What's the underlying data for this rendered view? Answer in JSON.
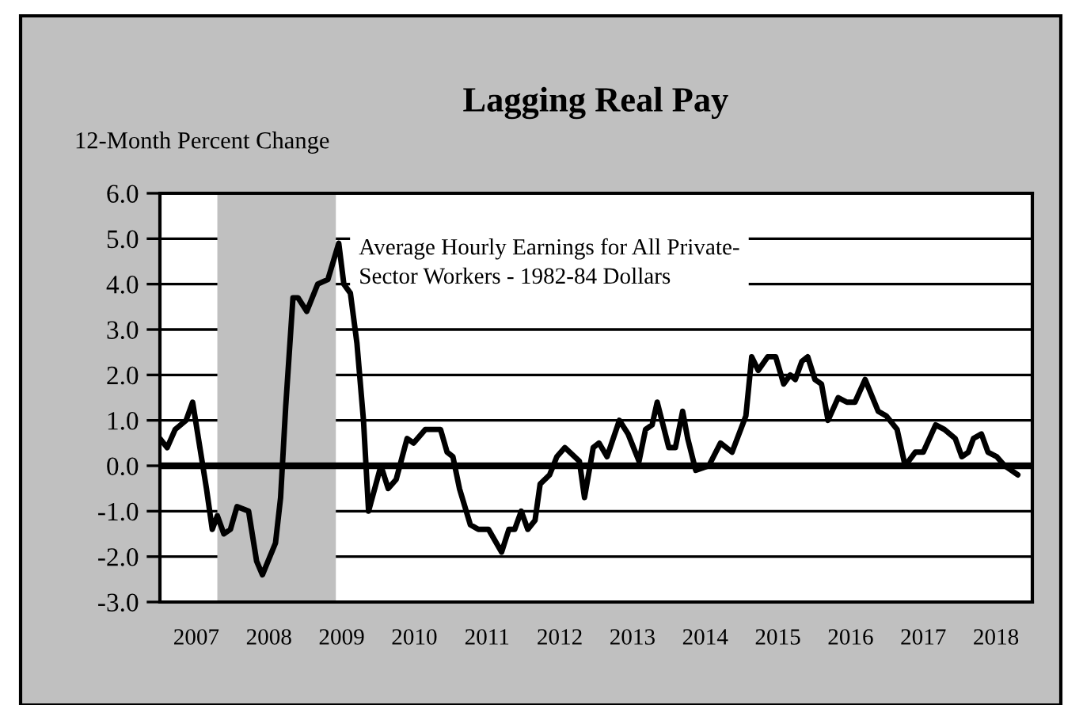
{
  "chart_data": {
    "type": "line",
    "title": "Lagging Real Pay",
    "ylabel": "12-Month Percent Change",
    "x": [
      2007.0,
      2007.1,
      2007.21,
      2007.36,
      2007.45,
      2007.54,
      2007.64,
      2007.72,
      2007.79,
      2007.88,
      2007.97,
      2008.06,
      2008.22,
      2008.33,
      2008.41,
      2008.59,
      2008.66,
      2008.73,
      2008.83,
      2008.9,
      2009.02,
      2009.17,
      2009.31,
      2009.46,
      2009.53,
      2009.62,
      2009.71,
      2009.8,
      2009.87,
      2010.04,
      2010.14,
      2010.25,
      2010.4,
      2010.49,
      2010.65,
      2010.86,
      2010.95,
      2011.03,
      2011.12,
      2011.27,
      2011.38,
      2011.52,
      2011.7,
      2011.8,
      2011.88,
      2011.97,
      2012.06,
      2012.16,
      2012.23,
      2012.36,
      2012.46,
      2012.57,
      2012.77,
      2012.84,
      2012.96,
      2013.04,
      2013.15,
      2013.32,
      2013.44,
      2013.59,
      2013.68,
      2013.77,
      2013.84,
      2014.0,
      2014.09,
      2014.19,
      2014.26,
      2014.37,
      2014.55,
      2014.71,
      2014.87,
      2015.06,
      2015.14,
      2015.23,
      2015.36,
      2015.47,
      2015.58,
      2015.67,
      2015.74,
      2015.83,
      2015.91,
      2016.01,
      2016.1,
      2016.19,
      2016.33,
      2016.45,
      2016.56,
      2016.7,
      2016.88,
      2016.99,
      2017.14,
      2017.25,
      2017.39,
      2017.5,
      2017.67,
      2017.79,
      2017.94,
      2018.03,
      2018.12,
      2018.19,
      2018.3,
      2018.39,
      2018.51,
      2018.62,
      2018.8
    ],
    "series": [
      {
        "name": "Average Hourly Earnings for All Private-\nSector Workers - 1982-84 Dollars",
        "color": "#000000",
        "values": [
          0.6,
          0.4,
          0.8,
          1.0,
          1.4,
          0.5,
          -0.5,
          -1.4,
          -1.1,
          -1.5,
          -1.4,
          -0.9,
          -1.0,
          -2.1,
          -2.4,
          -1.7,
          -0.7,
          1.3,
          3.7,
          3.7,
          3.4,
          4.0,
          4.1,
          4.9,
          4.0,
          3.8,
          2.7,
          1.0,
          -1.0,
          0.0,
          -0.5,
          -0.3,
          0.6,
          0.5,
          0.8,
          0.8,
          0.3,
          0.2,
          -0.5,
          -1.3,
          -1.4,
          -1.4,
          -1.9,
          -1.4,
          -1.4,
          -1.0,
          -1.4,
          -1.2,
          -0.4,
          -0.2,
          0.2,
          0.4,
          0.1,
          -0.7,
          0.4,
          0.5,
          0.2,
          1.0,
          0.7,
          0.1,
          0.8,
          0.9,
          1.4,
          0.4,
          0.4,
          1.2,
          0.6,
          -0.1,
          0.0,
          0.5,
          0.3,
          1.1,
          2.4,
          2.1,
          2.4,
          2.4,
          1.8,
          2.0,
          1.9,
          2.3,
          2.4,
          1.9,
          1.8,
          1.0,
          1.5,
          1.4,
          1.4,
          1.9,
          1.2,
          1.1,
          0.8,
          0.0,
          0.3,
          0.3,
          0.9,
          0.8,
          0.6,
          0.2,
          0.3,
          0.6,
          0.7,
          0.3,
          0.2,
          0.0,
          -0.2
        ]
      }
    ],
    "xlim": [
      2007,
      2019
    ],
    "xticks": [
      {
        "value": 2007.5,
        "label": "2007"
      },
      {
        "value": 2008.5,
        "label": "2008"
      },
      {
        "value": 2009.5,
        "label": "2009"
      },
      {
        "value": 2010.5,
        "label": "2010"
      },
      {
        "value": 2011.5,
        "label": "2011"
      },
      {
        "value": 2012.5,
        "label": "2012"
      },
      {
        "value": 2013.5,
        "label": "2013"
      },
      {
        "value": 2014.5,
        "label": "2014"
      },
      {
        "value": 2015.5,
        "label": "2015"
      },
      {
        "value": 2016.5,
        "label": "2016"
      },
      {
        "value": 2017.5,
        "label": "2017"
      },
      {
        "value": 2018.5,
        "label": "2018"
      }
    ],
    "ylim": [
      -3,
      6
    ],
    "yticks": [
      {
        "value": -3,
        "label": "-3.0"
      },
      {
        "value": -2,
        "label": "-2.0"
      },
      {
        "value": -1,
        "label": "-1.0"
      },
      {
        "value": 0,
        "label": "0.0"
      },
      {
        "value": 1,
        "label": "1.0"
      },
      {
        "value": 2,
        "label": "2.0"
      },
      {
        "value": 3,
        "label": "3.0"
      },
      {
        "value": 4,
        "label": "4.0"
      },
      {
        "value": 5,
        "label": "5.0"
      },
      {
        "value": 6,
        "label": "6.0"
      }
    ],
    "grid": "y",
    "ref_lines": [
      {
        "axis": "y",
        "value": 0,
        "color": "#000000"
      }
    ],
    "bands": [
      {
        "axis": "x",
        "from": 2007.79,
        "to": 2009.42,
        "color": "#c0c0c0"
      }
    ],
    "line_style": "solid",
    "marker": "none"
  }
}
